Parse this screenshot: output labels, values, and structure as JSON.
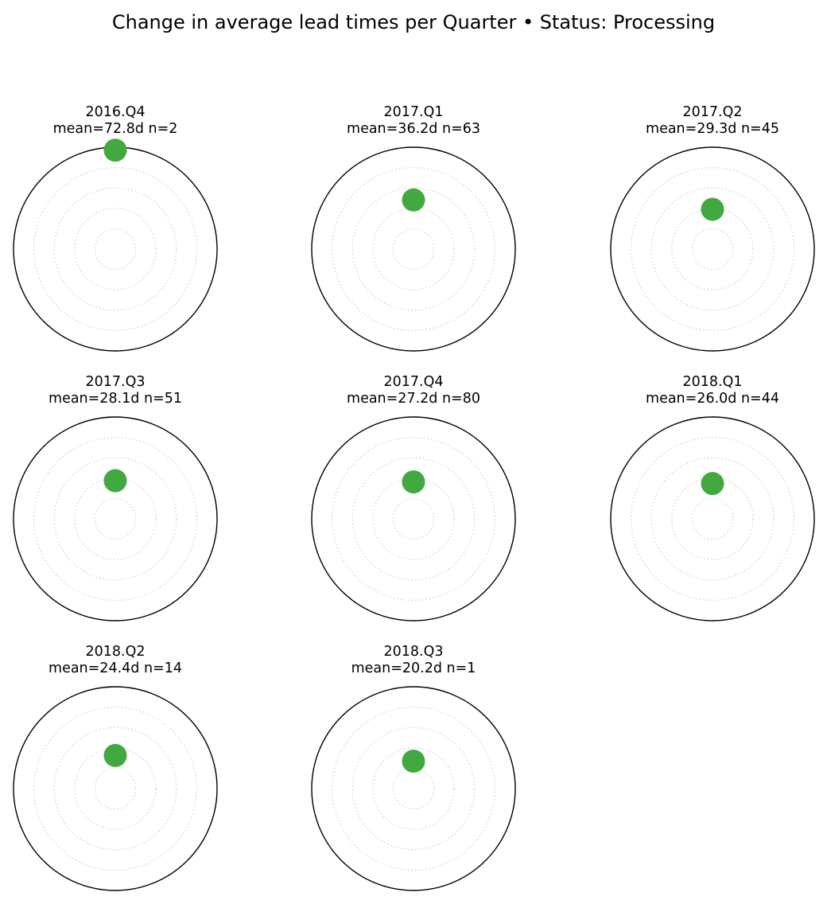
{
  "chart_data": {
    "type": "scatter",
    "projection": "polar",
    "title": "Change in average lead times per Quarter  •  Status: Processing",
    "grid": true,
    "marker_color": "#41a940",
    "radius_max_days": 75,
    "panels": [
      {
        "quarter": "2016.Q4",
        "label": "mean=72.8d  n=2",
        "mean_days": 72.8,
        "n": 2
      },
      {
        "quarter": "2017.Q1",
        "label": "mean=36.2d  n=63",
        "mean_days": 36.2,
        "n": 63
      },
      {
        "quarter": "2017.Q2",
        "label": "mean=29.3d  n=45",
        "mean_days": 29.3,
        "n": 45
      },
      {
        "quarter": "2017.Q3",
        "label": "mean=28.1d  n=51",
        "mean_days": 28.1,
        "n": 51
      },
      {
        "quarter": "2017.Q4",
        "label": "mean=27.2d  n=80",
        "mean_days": 27.2,
        "n": 80
      },
      {
        "quarter": "2018.Q1",
        "label": "mean=26.0d  n=44",
        "mean_days": 26.0,
        "n": 44
      },
      {
        "quarter": "2018.Q2",
        "label": "mean=24.4d  n=14",
        "mean_days": 24.4,
        "n": 14
      },
      {
        "quarter": "2018.Q3",
        "label": "mean=20.2d  n=1",
        "mean_days": 20.2,
        "n": 1
      }
    ]
  }
}
